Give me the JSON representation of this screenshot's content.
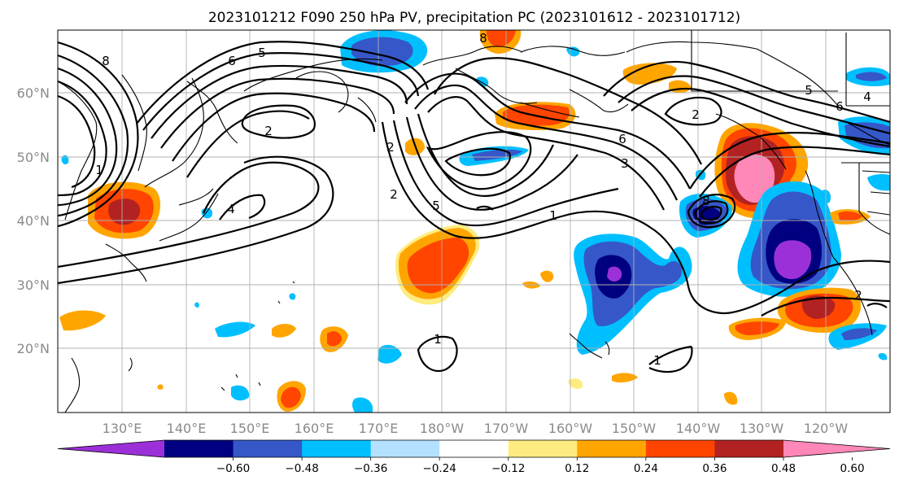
{
  "title": "2023101212 F090 250 hPa PV, precipitation PC (2023101612 - 2023101712)",
  "lat_labels": [
    "60°N",
    "50°N",
    "40°N",
    "30°N",
    "20°N"
  ],
  "lon_labels": [
    "130°E",
    "140°E",
    "150°E",
    "160°E",
    "170°E",
    "180°W",
    "170°W",
    "160°W",
    "150°W",
    "140°W",
    "130°W",
    "120°W"
  ],
  "colorbar": {
    "colors": [
      "#9b30d8",
      "#000080",
      "#3557c8",
      "#00bfff",
      "#b3e1ff",
      "#ffffff",
      "#ffec80",
      "#ffa500",
      "#ff4500",
      "#b22222",
      "#ff88b8"
    ],
    "tick_labels": [
      "-0.60",
      "-0.48",
      "-0.36",
      "-0.24",
      "-0.12",
      "0.12",
      "0.24",
      "0.36",
      "0.48",
      "0.60"
    ]
  },
  "contour_labels": [
    "8",
    "6",
    "5",
    "2",
    "1",
    "4",
    "2",
    "5",
    "1",
    "2",
    "6",
    "3",
    "8",
    "2",
    "5",
    "6",
    "4",
    "1",
    "1",
    "2",
    "8"
  ]
}
